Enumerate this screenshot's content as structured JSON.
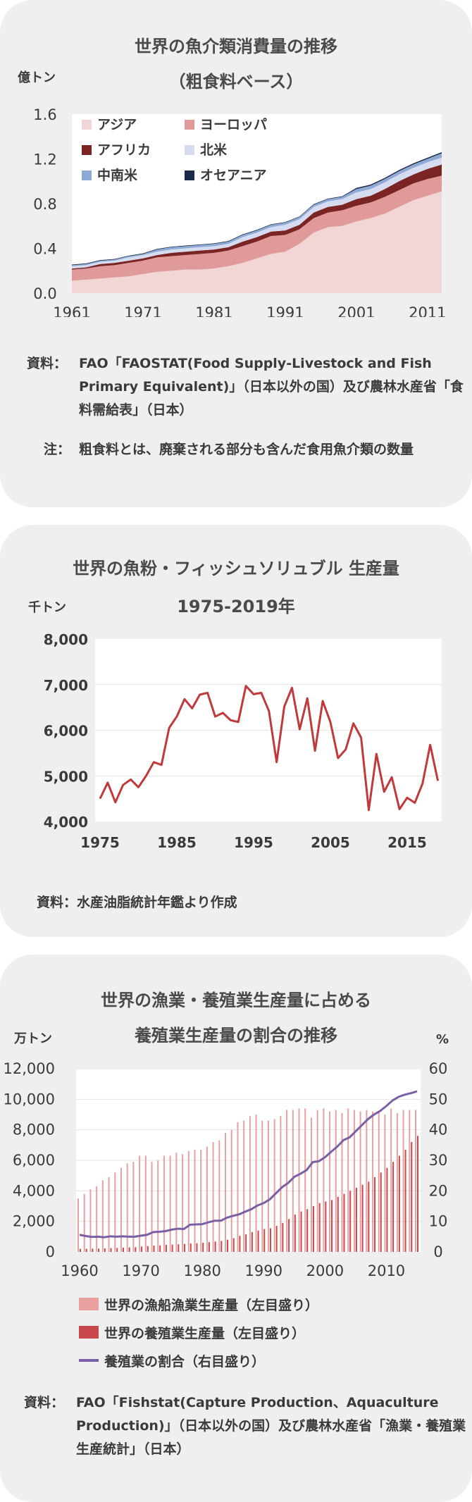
{
  "chart1": {
    "title1": "世界の魚介類消費量の推移",
    "title2": "（粗食料ベース）",
    "unit": "億トン",
    "y_ticks": [
      "0.0",
      "0.4",
      "0.8",
      "1.2",
      "1.6"
    ],
    "x_ticks": [
      "1961",
      "1971",
      "1981",
      "1991",
      "2001",
      "2011"
    ],
    "source_label": "資料：",
    "source_text": "FAO「FAOSTAT(Food Supply-Livestock and Fish Primary Equivalent)」（日本以外の国）及び農林水産省「食料需給表」（日本）",
    "note_label": "注：",
    "note_text": "粗食料とは、廃棄される部分も含んだ食用魚介類の数量"
  },
  "chart2": {
    "title1": "世界の魚粉・フィッシュソリュブル 生産量",
    "title2": "1975-2019年",
    "unit": "千トン",
    "y_ticks": [
      "4,000",
      "5,000",
      "6,000",
      "7,000",
      "8,000"
    ],
    "x_ticks": [
      "1975",
      "1985",
      "1995",
      "2005",
      "2015"
    ],
    "source": "資料：水産油脂統計年鑑より作成"
  },
  "chart3": {
    "title1": "世界の漁業・養殖業生産量に占める",
    "title2": "養殖業生産量の割合の推移",
    "unit_left": "万トン",
    "unit_right": "%",
    "y_ticks_left": [
      "0",
      "2,000",
      "4,000",
      "6,000",
      "8,000",
      "10,000",
      "12,000"
    ],
    "y_ticks_right": [
      "0",
      "10",
      "20",
      "30",
      "40",
      "50",
      "60"
    ],
    "x_ticks": [
      "1960",
      "1970",
      "1980",
      "1990",
      "2000",
      "2010"
    ],
    "legend": [
      "世界の漁船漁業生産量（左目盛り）",
      "世界の養殖業生産量（左目盛り）",
      "養殖業の割合（右目盛り）"
    ],
    "source_label": "資料：",
    "source_text": "FAO「Fishstat(Capture Production、Aquaculture Production)」（日本以外の国）及び農林水産省「漁業・養殖業生産統計」（日本）"
  },
  "chart_data": [
    {
      "type": "area",
      "stacked": true,
      "title": "世界の魚介類消費量の推移（粗食料ベース）",
      "ylabel": "億トン",
      "ylim": [
        0,
        1.6
      ],
      "x": [
        1961,
        1963,
        1965,
        1967,
        1969,
        1971,
        1973,
        1975,
        1977,
        1979,
        1981,
        1983,
        1985,
        1987,
        1989,
        1991,
        1993,
        1995,
        1997,
        1999,
        2001,
        2003,
        2005,
        2007,
        2009,
        2011,
        2013
      ],
      "legend_position": "top-left",
      "series": [
        {
          "name": "アジア",
          "color": "#f2d5d5",
          "values": [
            0.11,
            0.12,
            0.13,
            0.14,
            0.15,
            0.17,
            0.19,
            0.2,
            0.21,
            0.21,
            0.22,
            0.24,
            0.27,
            0.31,
            0.35,
            0.37,
            0.44,
            0.54,
            0.59,
            0.6,
            0.64,
            0.67,
            0.71,
            0.77,
            0.83,
            0.87,
            0.91
          ]
        },
        {
          "name": "ヨーロッパ",
          "color": "#e09a9a",
          "values": [
            0.1,
            0.1,
            0.11,
            0.11,
            0.12,
            0.12,
            0.13,
            0.13,
            0.13,
            0.14,
            0.14,
            0.14,
            0.15,
            0.15,
            0.16,
            0.15,
            0.13,
            0.13,
            0.13,
            0.14,
            0.14,
            0.14,
            0.15,
            0.15,
            0.15,
            0.15,
            0.14
          ]
        },
        {
          "name": "アフリカ",
          "color": "#7a2424",
          "values": [
            0.01,
            0.01,
            0.02,
            0.02,
            0.02,
            0.02,
            0.02,
            0.03,
            0.03,
            0.03,
            0.03,
            0.03,
            0.04,
            0.04,
            0.04,
            0.04,
            0.04,
            0.05,
            0.05,
            0.05,
            0.06,
            0.06,
            0.07,
            0.08,
            0.08,
            0.09,
            0.1
          ]
        },
        {
          "name": "北米",
          "color": "#d6dcf0",
          "values": [
            0.02,
            0.02,
            0.02,
            0.02,
            0.03,
            0.03,
            0.03,
            0.03,
            0.03,
            0.03,
            0.03,
            0.03,
            0.04,
            0.04,
            0.04,
            0.05,
            0.05,
            0.05,
            0.05,
            0.05,
            0.06,
            0.06,
            0.06,
            0.06,
            0.06,
            0.06,
            0.06
          ]
        },
        {
          "name": "中南米",
          "color": "#8fa9d6",
          "values": [
            0.01,
            0.01,
            0.01,
            0.01,
            0.01,
            0.01,
            0.02,
            0.02,
            0.02,
            0.02,
            0.02,
            0.02,
            0.02,
            0.02,
            0.02,
            0.02,
            0.02,
            0.02,
            0.02,
            0.02,
            0.03,
            0.03,
            0.03,
            0.03,
            0.03,
            0.03,
            0.04
          ]
        },
        {
          "name": "オセアニア",
          "color": "#1b2a4a",
          "values": [
            0.005,
            0.005,
            0.005,
            0.005,
            0.005,
            0.005,
            0.005,
            0.005,
            0.005,
            0.005,
            0.005,
            0.005,
            0.005,
            0.005,
            0.005,
            0.005,
            0.005,
            0.005,
            0.005,
            0.005,
            0.01,
            0.01,
            0.01,
            0.01,
            0.01,
            0.01,
            0.01
          ]
        }
      ]
    },
    {
      "type": "line",
      "title": "世界の魚粉・フィッシュソリュブル 生産量 1975-2019年",
      "ylabel": "千トン",
      "ylim": [
        4000,
        8000
      ],
      "x": [
        1975,
        1976,
        1977,
        1978,
        1979,
        1980,
        1981,
        1982,
        1983,
        1984,
        1985,
        1986,
        1987,
        1988,
        1989,
        1990,
        1991,
        1992,
        1993,
        1994,
        1995,
        1996,
        1997,
        1998,
        1999,
        2000,
        2001,
        2002,
        2003,
        2004,
        2005,
        2006,
        2007,
        2008,
        2009,
        2010,
        2011,
        2012,
        2013,
        2014,
        2015,
        2016,
        2017,
        2018,
        2019
      ],
      "series": [
        {
          "name": "",
          "color": "#c0393b",
          "values": [
            4500,
            4850,
            4420,
            4800,
            4920,
            4750,
            5000,
            5300,
            5240,
            6050,
            6300,
            6680,
            6480,
            6780,
            6820,
            6300,
            6380,
            6220,
            6180,
            6970,
            6790,
            6820,
            6420,
            5300,
            6520,
            6930,
            6020,
            6700,
            5550,
            6640,
            6180,
            5390,
            5580,
            6150,
            5840,
            4250,
            5480,
            4650,
            4970,
            4270,
            4520,
            4410,
            4830,
            5680,
            4890
          ]
        }
      ]
    },
    {
      "type": "bar",
      "title": "世界の漁業・養殖業生産量に占める養殖業生産量の割合の推移",
      "ylabel": "万トン",
      "y2label": "%",
      "ylim": [
        0,
        12000
      ],
      "y2lim": [
        0,
        60
      ],
      "x": [
        1960,
        1961,
        1962,
        1963,
        1964,
        1965,
        1966,
        1967,
        1968,
        1969,
        1970,
        1971,
        1972,
        1973,
        1974,
        1975,
        1976,
        1977,
        1978,
        1979,
        1980,
        1981,
        1982,
        1983,
        1984,
        1985,
        1986,
        1987,
        1988,
        1989,
        1990,
        1991,
        1992,
        1993,
        1994,
        1995,
        1996,
        1997,
        1998,
        1999,
        2000,
        2001,
        2002,
        2003,
        2004,
        2005,
        2006,
        2007,
        2008,
        2009,
        2010,
        2011,
        2012,
        2013,
        2014,
        2015
      ],
      "series": [
        {
          "name": "世界の漁船漁業生産量（左目盛り）",
          "type": "bar",
          "color": "#e8a0a0",
          "values": [
            3500,
            3800,
            4100,
            4300,
            4700,
            4900,
            5200,
            5500,
            5800,
            5900,
            6300,
            6300,
            5900,
            6000,
            6300,
            6300,
            6500,
            6400,
            6600,
            6700,
            6700,
            6900,
            7200,
            7300,
            7800,
            8000,
            8500,
            8600,
            8900,
            9000,
            8600,
            8600,
            8700,
            8900,
            9300,
            9300,
            9400,
            9400,
            8800,
            9300,
            9400,
            9200,
            9300,
            9100,
            9400,
            9300,
            9200,
            9300,
            9200,
            9200,
            9000,
            9400,
            9100,
            9300,
            9300,
            9300
          ]
        },
        {
          "name": "世界の養殖業生産量（左目盛り）",
          "type": "bar",
          "color": "#c9474a",
          "values": [
            200,
            200,
            210,
            220,
            230,
            250,
            260,
            280,
            300,
            310,
            350,
            380,
            410,
            430,
            460,
            480,
            500,
            520,
            550,
            570,
            600,
            640,
            680,
            720,
            800,
            900,
            1050,
            1150,
            1300,
            1400,
            1500,
            1550,
            1700,
            1900,
            2150,
            2450,
            2650,
            2800,
            3000,
            3200,
            3300,
            3400,
            3600,
            3800,
            4000,
            4200,
            4400,
            4600,
            4900,
            5200,
            5500,
            5900,
            6300,
            6700,
            7200,
            7600
          ]
        },
        {
          "name": "養殖業の割合（右目盛り）",
          "type": "line",
          "color": "#7b5fa6",
          "values": [
            5.6,
            5.2,
            4.9,
            5.0,
            4.8,
            5.1,
            5.0,
            5.1,
            5.0,
            5.0,
            5.3,
            5.6,
            6.5,
            6.6,
            6.8,
            7.3,
            7.6,
            7.5,
            8.9,
            9.0,
            9.1,
            9.7,
            10.2,
            10.2,
            11.2,
            11.8,
            12.3,
            13.2,
            14.0,
            15.2,
            16.0,
            17.2,
            19.2,
            21.2,
            22.6,
            24.6,
            25.6,
            26.8,
            29.4,
            29.7,
            31.0,
            32.8,
            34.5,
            36.6,
            37.5,
            39.5,
            41.5,
            43.5,
            45.0,
            46.2,
            47.8,
            49.6,
            50.8,
            51.5,
            52.0,
            52.6
          ]
        }
      ]
    }
  ]
}
